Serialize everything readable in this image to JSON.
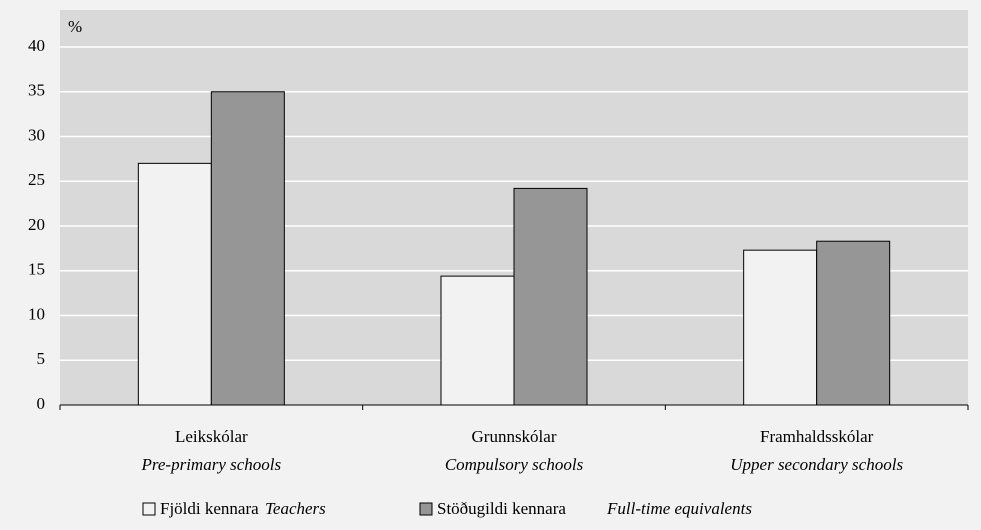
{
  "chart_data": {
    "type": "bar",
    "y_unit_label": "%",
    "categories": [
      "Leikskólar",
      "Grunnskólar",
      "Framhaldsskólar"
    ],
    "category_translations": [
      "Pre-primary schools",
      "Compulsory schools",
      "Upper secondary schools"
    ],
    "series": [
      {
        "name": "Fjöldi kennara",
        "name_translation": "Teachers",
        "color": "#f2f2f2",
        "values": [
          27,
          14.4,
          17.3
        ]
      },
      {
        "name": "Stöðugildi kennara",
        "name_translation": "Full-time equivalents",
        "color": "#969696",
        "values": [
          35,
          24.2,
          18.3
        ]
      }
    ],
    "ylim": [
      0,
      40
    ],
    "yticks": [
      0,
      5,
      10,
      15,
      20,
      25,
      30,
      35,
      40
    ],
    "grid": true
  }
}
